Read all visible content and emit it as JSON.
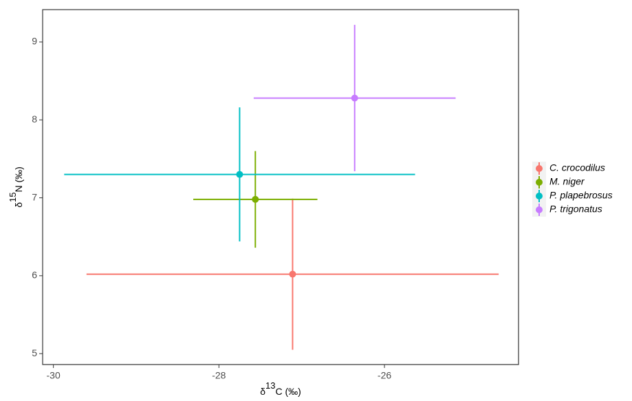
{
  "chart_data": {
    "type": "scatter",
    "x_label": [
      "δ",
      "13",
      "C (‰)"
    ],
    "y_label": [
      "δ",
      "15",
      "N (‰)"
    ],
    "xlim": [
      -30.13,
      -24.38
    ],
    "ylim": [
      4.86,
      9.415
    ],
    "xticks": [
      -30,
      -28,
      -26
    ],
    "yticks": [
      5,
      6,
      7,
      8,
      9
    ],
    "grid": false,
    "legend": "right",
    "series": [
      {
        "name": "C. crocodilus",
        "color": "#F8766D",
        "x": [
          -27.11
        ],
        "values": [
          6.02
        ],
        "xerr": [
          2.49
        ],
        "yerr": [
          0.97
        ]
      },
      {
        "name": "M. niger",
        "color": "#7CAE00",
        "x": [
          -27.56
        ],
        "values": [
          6.98
        ],
        "xerr": [
          0.75
        ],
        "yerr": [
          0.62
        ]
      },
      {
        "name": "P. plapebrosus",
        "color": "#00BFC4",
        "x": [
          -27.75
        ],
        "values": [
          7.3
        ],
        "xerr": [
          2.12
        ],
        "yerr": [
          0.86
        ]
      },
      {
        "name": "P. trigonatus",
        "color": "#C77CFF",
        "x": [
          -26.36
        ],
        "values": [
          8.28
        ],
        "xerr": [
          1.22
        ],
        "yerr": [
          0.94
        ]
      }
    ]
  }
}
